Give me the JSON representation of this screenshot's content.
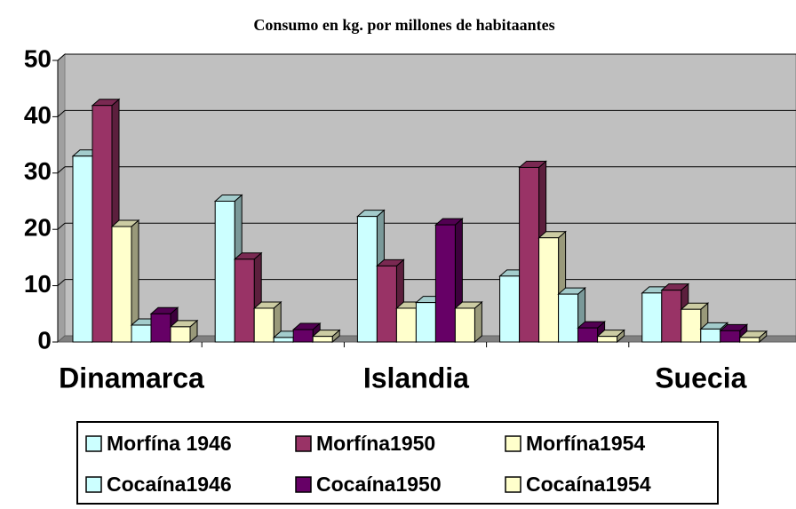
{
  "chart_data": {
    "type": "bar3d",
    "title": "Consumo en kg. por millones de habitaantes",
    "categories": [
      "Dinamarca",
      null,
      "Islandia",
      null,
      "Suecia"
    ],
    "series": [
      {
        "name": "Morfína 1946",
        "color": "#ccffff",
        "values": [
          33,
          25,
          22.3,
          11.7,
          8.7
        ]
      },
      {
        "name": "Morfína1950",
        "color": "#993366",
        "values": [
          42,
          14.7,
          13.5,
          31,
          9.2
        ]
      },
      {
        "name": "Morfína1954",
        "color": "#ffffcc",
        "values": [
          20.5,
          6,
          6,
          18.5,
          5.8
        ]
      },
      {
        "name": "Cocaína1946",
        "color": "#ccffff",
        "values": [
          3,
          0.8,
          7,
          8.5,
          2.3
        ]
      },
      {
        "name": "Cocaína1950",
        "color": "#660066",
        "values": [
          5,
          2.2,
          20.8,
          2.5,
          2
        ]
      },
      {
        "name": "Cocaína1954",
        "color": "#ffffcc",
        "values": [
          2.7,
          1,
          6,
          1,
          0.8
        ]
      }
    ],
    "ylim": [
      0,
      50
    ],
    "yticks": [
      0,
      10,
      20,
      30,
      40,
      50
    ],
    "grid": true
  }
}
